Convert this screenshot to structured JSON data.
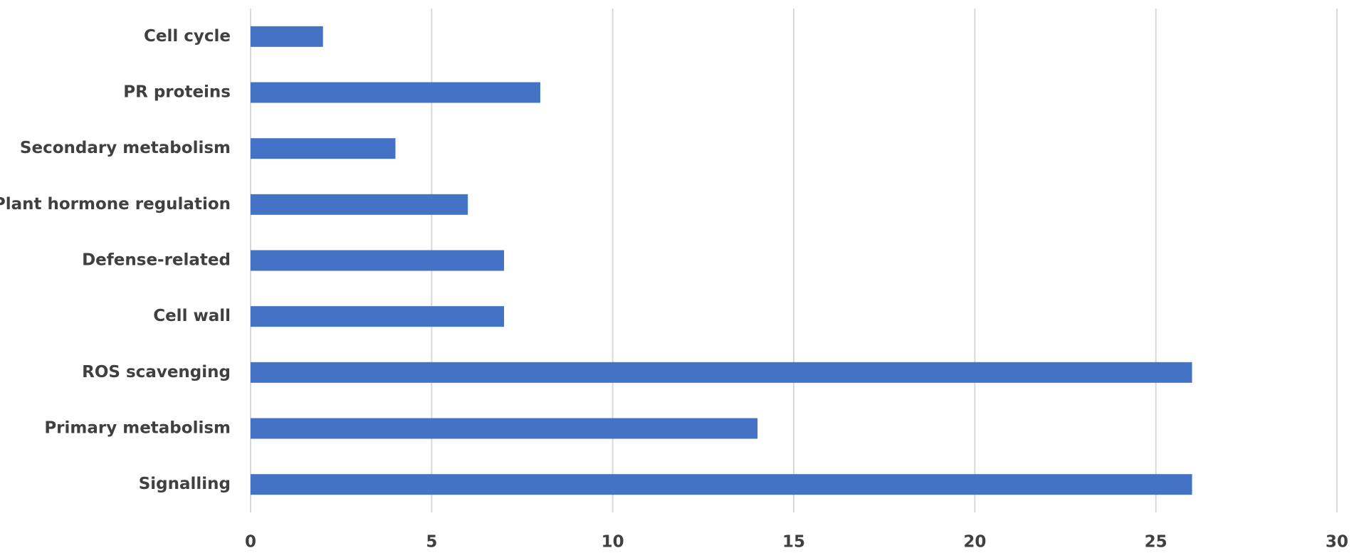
{
  "chart_data": {
    "type": "bar",
    "orientation": "horizontal",
    "categories": [
      "Cell cycle",
      "PR proteins",
      "Secondary metabolism",
      "Plant hormone regulation",
      "Defense-related",
      "Cell wall",
      "ROS scavenging",
      "Primary metabolism",
      "Signalling"
    ],
    "values": [
      2,
      8,
      4,
      6,
      7,
      7,
      26,
      14,
      26
    ],
    "color": "#4472c4",
    "xlim": [
      0,
      30
    ],
    "xticks": [
      0,
      5,
      10,
      15,
      20,
      25,
      30
    ],
    "grid": true
  }
}
